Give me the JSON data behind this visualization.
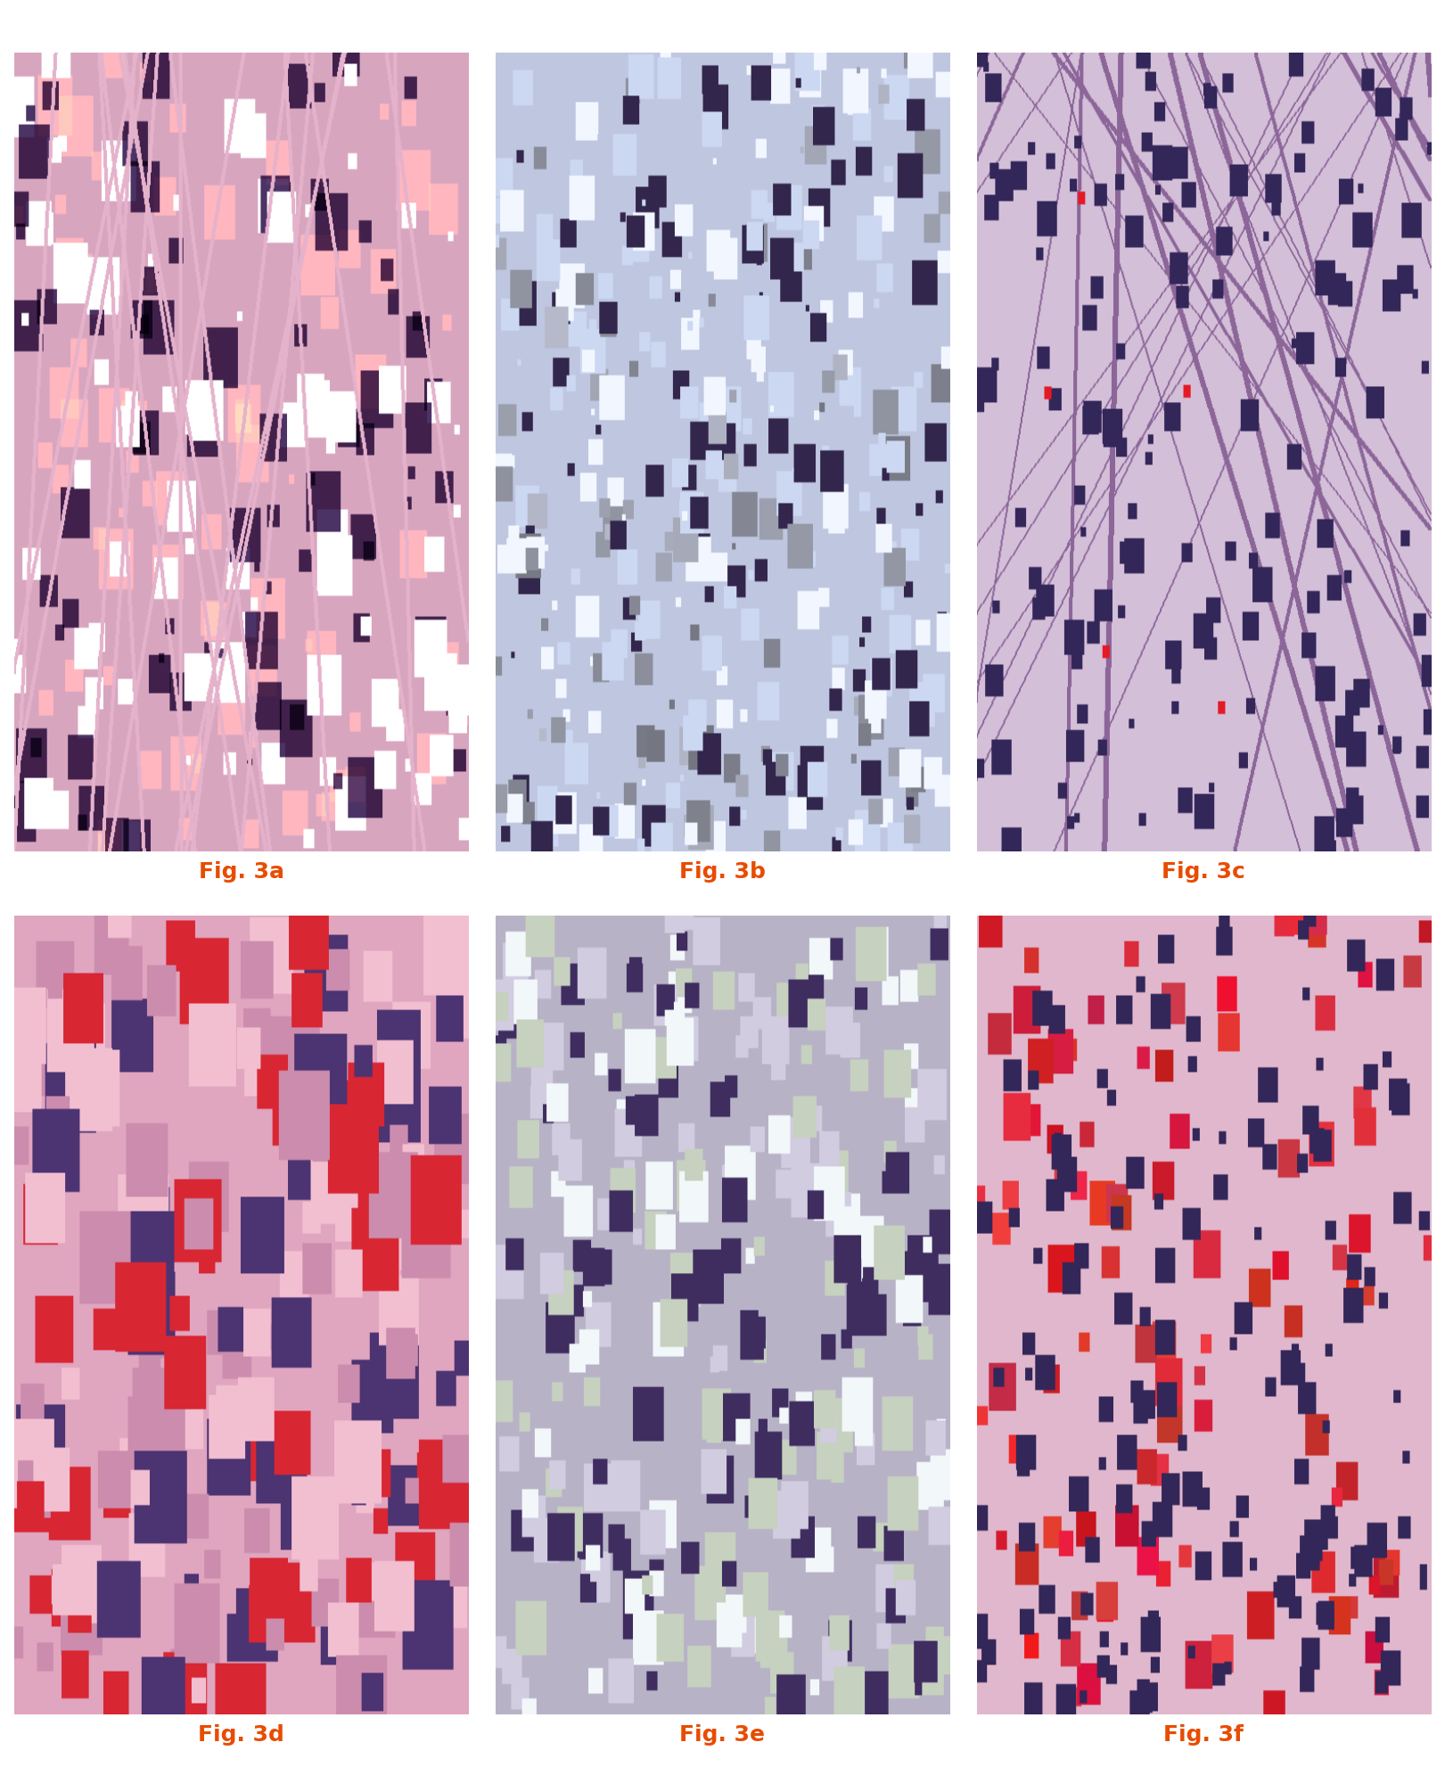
{
  "figure_size": [
    16.21,
    19.82
  ],
  "dpi": 100,
  "background_color": "#ffffff",
  "captions": [
    "Fig. 3a",
    "Fig. 3b",
    "Fig. 3c",
    "Fig. 3d",
    "Fig. 3e",
    "Fig. 3f"
  ],
  "caption_color": "#e84c00",
  "caption_fontsize": 18,
  "caption_fontweight": "bold",
  "rows": 2,
  "cols": 3,
  "hspace": 0.08,
  "wspace": 0.06
}
